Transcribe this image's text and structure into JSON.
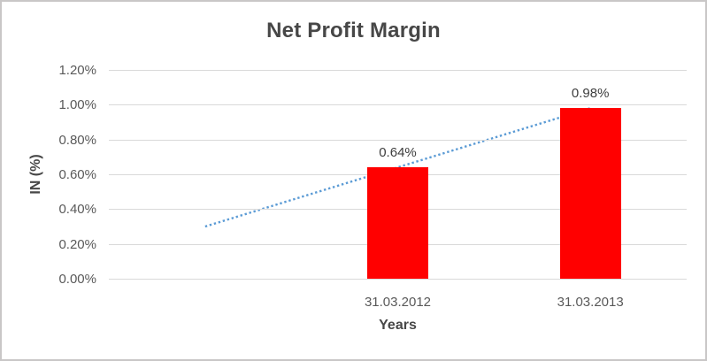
{
  "chart_data": {
    "type": "bar",
    "title": "Net Profit Margin",
    "xlabel": "Years",
    "ylabel": "IN (%)",
    "categories": [
      "31.03.2012",
      "31.03.2013"
    ],
    "values": [
      0.64,
      0.98
    ],
    "data_labels": [
      "0.64%",
      "0.98%"
    ],
    "ylim": [
      0,
      1.2
    ],
    "ytick_step": 0.2,
    "ytick_labels": [
      "0.00%",
      "0.20%",
      "0.40%",
      "0.60%",
      "0.80%",
      "1.00%",
      "1.20%"
    ],
    "grid": true,
    "legend": false,
    "bar_color": "#FF0000",
    "category_slots": 3,
    "first_bar_slot": 1,
    "trendline": {
      "type": "linear",
      "style": "dotted",
      "color": "#5B9BD5",
      "points": [
        [
          0,
          0.3
        ],
        [
          2,
          0.98
        ]
      ]
    }
  },
  "colors": {
    "bar": "#FF0000",
    "trendline": "#5B9BD5",
    "gridline": "#D9D9D9",
    "tick_text": "#595959",
    "title_text": "#474747",
    "frame_border": "#C9C7C7"
  }
}
